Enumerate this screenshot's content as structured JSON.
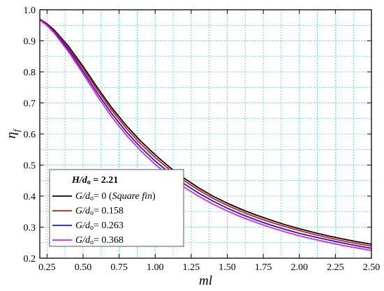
{
  "chart_data": {
    "type": "line",
    "xlabel": "ml",
    "ylabel_main": "η",
    "ylabel_sub": "f",
    "xlim": [
      0.2,
      2.5
    ],
    "ylim": [
      0.2,
      1.0
    ],
    "xticks": [
      "0.25",
      "0.50",
      "0.75",
      "1.00",
      "1.25",
      "1.50",
      "1.75",
      "2.00",
      "2.25",
      "2.50"
    ],
    "yticks": [
      "0.2",
      "0.3",
      "0.4",
      "0.5",
      "0.6",
      "0.7",
      "0.8",
      "0.9",
      "1.0"
    ],
    "grid": true,
    "legend": {
      "placement": "bottom-left",
      "title_prefix": "H/d",
      "title_sub": "o",
      "title_suffix": " = 2.21"
    },
    "x": [
      0.2,
      0.25,
      0.3,
      0.4,
      0.5,
      0.6,
      0.7,
      0.8,
      0.9,
      1.0,
      1.1,
      1.2,
      1.3,
      1.4,
      1.5,
      1.6,
      1.7,
      1.8,
      1.9,
      2.0,
      2.1,
      2.2,
      2.3,
      2.4,
      2.5
    ],
    "series": [
      {
        "name": "G/do= 0 (Square fin)",
        "legend_parts": {
          "italic": "G/d",
          "sub": "o",
          "normal": "= 0 (",
          "italic2": "Square fin",
          "normal2": ")"
        },
        "color": "#000000",
        "values": [
          0.97,
          0.955,
          0.935,
          0.882,
          0.818,
          0.749,
          0.684,
          0.627,
          0.577,
          0.533,
          0.493,
          0.458,
          0.427,
          0.4,
          0.377,
          0.357,
          0.339,
          0.323,
          0.308,
          0.295,
          0.283,
          0.272,
          0.262,
          0.253,
          0.245
        ]
      },
      {
        "name": "G/do= 0.158",
        "legend_parts": {
          "italic": "G/d",
          "sub": "o",
          "normal": "= 0.158",
          "italic2": "",
          "normal2": ""
        },
        "color": "#e3120b",
        "values": [
          0.969,
          0.953,
          0.932,
          0.877,
          0.811,
          0.741,
          0.676,
          0.618,
          0.568,
          0.524,
          0.485,
          0.45,
          0.42,
          0.393,
          0.37,
          0.35,
          0.332,
          0.316,
          0.302,
          0.289,
          0.277,
          0.266,
          0.256,
          0.247,
          0.239
        ]
      },
      {
        "name": "G/do= 0.263",
        "legend_parts": {
          "italic": "G/d",
          "sub": "o",
          "normal": "= 0.263",
          "italic2": "",
          "normal2": ""
        },
        "color": "#1a1acc",
        "values": [
          0.968,
          0.951,
          0.929,
          0.871,
          0.802,
          0.731,
          0.665,
          0.607,
          0.557,
          0.513,
          0.474,
          0.44,
          0.41,
          0.384,
          0.361,
          0.341,
          0.323,
          0.307,
          0.293,
          0.28,
          0.269,
          0.259,
          0.249,
          0.24,
          0.232
        ]
      },
      {
        "name": "G/do= 0.368",
        "legend_parts": {
          "italic": "G/d",
          "sub": "o",
          "normal": "= 0.368",
          "italic2": "",
          "normal2": ""
        },
        "color": "#e61ee6",
        "values": [
          0.967,
          0.949,
          0.925,
          0.864,
          0.794,
          0.721,
          0.654,
          0.596,
          0.546,
          0.502,
          0.463,
          0.429,
          0.4,
          0.374,
          0.352,
          0.332,
          0.315,
          0.299,
          0.285,
          0.272,
          0.261,
          0.251,
          0.241,
          0.233,
          0.225
        ]
      }
    ]
  }
}
